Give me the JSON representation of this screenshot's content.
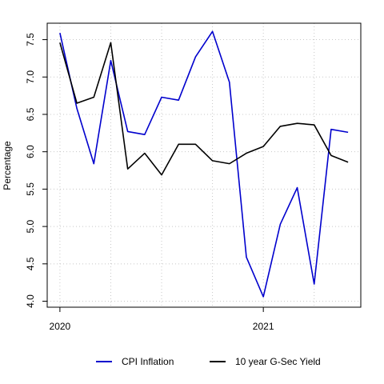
{
  "chart_data": {
    "type": "line",
    "title": "",
    "xlabel": "",
    "ylabel": "Percentage",
    "x_tick_labels": [
      "2020",
      "2021"
    ],
    "x_tick_positions_month_index": [
      0,
      12
    ],
    "y_ticks": [
      4.0,
      4.5,
      5.0,
      5.5,
      6.0,
      6.5,
      7.0,
      7.5
    ],
    "xlim": [
      -0.75,
      17.75
    ],
    "ylim": [
      3.92,
      7.72
    ],
    "grid": true,
    "legend_position": "bottom",
    "x": [
      "2020-01",
      "2020-02",
      "2020-03",
      "2020-04",
      "2020-05",
      "2020-06",
      "2020-07",
      "2020-08",
      "2020-09",
      "2020-10",
      "2020-11",
      "2020-12",
      "2021-01",
      "2021-02",
      "2021-03",
      "2021-04",
      "2021-05",
      "2021-06"
    ],
    "series": [
      {
        "name": "CPI Inflation",
        "color": "#0000cd",
        "values": [
          7.59,
          6.58,
          5.84,
          7.22,
          6.27,
          6.23,
          6.73,
          6.69,
          7.27,
          7.61,
          6.93,
          4.59,
          4.06,
          5.03,
          5.52,
          4.23,
          6.3,
          6.26
        ]
      },
      {
        "name": "10 year G-Sec Yield",
        "color": "#000000",
        "values": [
          7.46,
          6.65,
          6.73,
          7.46,
          5.77,
          5.98,
          5.69,
          6.1,
          6.1,
          5.88,
          5.84,
          5.98,
          6.07,
          6.34,
          6.38,
          6.36,
          5.95,
          5.86
        ]
      }
    ]
  }
}
